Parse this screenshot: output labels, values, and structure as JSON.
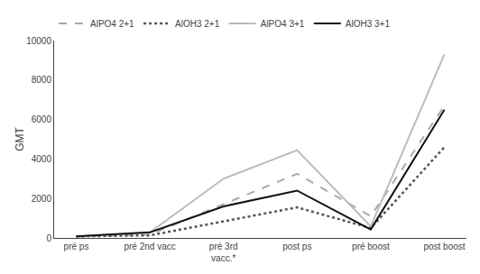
{
  "chart_data": {
    "type": "line",
    "categories": [
      "pré ps",
      "pré 2nd vacc",
      "pré 3rd\nvacc.*",
      "post ps",
      "pré boost",
      "post boost"
    ],
    "series": [
      {
        "name": "AlPO4 2+1",
        "color": "#aaaaaa",
        "line_style": "dashed",
        "values": [
          80,
          170,
          null,
          3250,
          1100,
          6700
        ]
      },
      {
        "name": "AlOH3 2+1",
        "color": "#555555",
        "line_style": "dotted",
        "values": [
          80,
          130,
          null,
          1550,
          500,
          4600
        ]
      },
      {
        "name": "AlPO4 3+1",
        "color": "#bbbbbb",
        "line_style": "solid",
        "values": [
          80,
          280,
          3000,
          4450,
          580,
          9300
        ]
      },
      {
        "name": "AlOH3 3+1",
        "color": "#111111",
        "line_style": "solid",
        "values": [
          80,
          280,
          1600,
          2400,
          430,
          6500
        ]
      }
    ],
    "ylabel": "GMT",
    "ylim": [
      0,
      10000
    ],
    "yticks": [
      0,
      2000,
      4000,
      6000,
      8000,
      10000
    ],
    "grid": false,
    "legend": "top"
  }
}
